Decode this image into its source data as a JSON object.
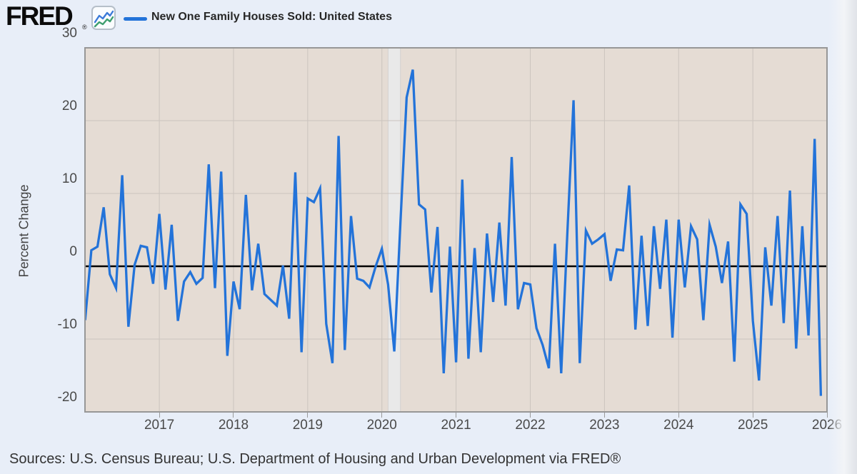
{
  "header": {
    "logo_text": "FRED",
    "registered_mark": "®",
    "legend": {
      "series_label": "New One Family Houses Sold: United States",
      "swatch_color": "#2373d9"
    }
  },
  "y_axis": {
    "title": "Percent Change",
    "ticks": [
      30,
      20,
      10,
      0,
      -10,
      -20
    ]
  },
  "x_axis": {
    "ticks": [
      2017,
      2018,
      2019,
      2020,
      2021,
      2022,
      2023,
      2024,
      2025,
      2026
    ]
  },
  "footer": {
    "sources": "Sources: U.S. Census Bureau; U.S. Department of Housing and Urban Development via FRED®"
  },
  "colors": {
    "page_background": "#e8eef8",
    "plot_background": "#e5dcd4",
    "gridline": "#cbc4be",
    "plot_border": "#979797",
    "zero_line": "#000000",
    "series_line": "#2373d9",
    "recession_band": "#e9e9e9",
    "recession_band_edge": "#d4d2cf",
    "axis_text": "#4a4a4a"
  },
  "chart_data": {
    "type": "line",
    "title": "New One Family Houses Sold: United States",
    "ylabel": "Percent Change",
    "frequency": "monthly",
    "x_start": "2016-01",
    "x_end": "2025-12",
    "ylim": [
      -20,
      30
    ],
    "xlim_years": [
      2016,
      2026
    ],
    "zero_line": 0,
    "grid": true,
    "legend_position": "top-left",
    "recession_band": {
      "from": "2020-02",
      "to": "2020-04"
    },
    "gridlines": {
      "y_values": [
        20,
        10,
        0,
        -10
      ],
      "x_years": [
        2017,
        2018,
        2019,
        2020,
        2021,
        2022,
        2023,
        2024,
        2025
      ]
    },
    "series": [
      {
        "name": "New One Family Houses Sold: United States",
        "color": "#2373d9",
        "values": [
          -7.4,
          2.2,
          2.7,
          8.1,
          -1.1,
          -3.0,
          12.5,
          -8.3,
          0.2,
          2.8,
          2.6,
          -2.4,
          7.2,
          -3.2,
          5.7,
          -7.5,
          -2.1,
          -0.8,
          -2.4,
          -1.6,
          14.0,
          -3.0,
          13.0,
          -12.3,
          -2.1,
          -5.9,
          9.8,
          -3.3,
          3.1,
          -3.8,
          -4.6,
          -5.4,
          0.1,
          -7.2,
          12.9,
          -11.8,
          9.3,
          8.8,
          10.7,
          -7.9,
          -13.3,
          17.9,
          -11.5,
          6.9,
          -1.7,
          -2.0,
          -2.9,
          0.0,
          2.4,
          -2.5,
          -11.7,
          6.0,
          23.2,
          27.0,
          8.5,
          7.8,
          -3.6,
          5.4,
          -14.7,
          2.7,
          -13.2,
          11.9,
          -12.7,
          2.5,
          -11.8,
          4.5,
          -4.9,
          6.0,
          -5.4,
          15.0,
          -5.9,
          -2.3,
          -2.5,
          -8.5,
          -10.8,
          -14.0,
          3.1,
          -14.7,
          4.5,
          22.8,
          -13.3,
          4.9,
          3.1,
          3.7,
          4.4,
          -2.0,
          2.3,
          2.2,
          11.1,
          -8.7,
          4.2,
          -8.2,
          5.5,
          -3.1,
          6.4,
          -9.8,
          6.4,
          -2.9,
          5.5,
          3.7,
          -7.4,
          5.7,
          2.7,
          -2.3,
          3.4,
          -13.1,
          8.5,
          7.2,
          -7.5,
          -15.7,
          2.6,
          -5.4,
          6.9,
          -7.8,
          10.4,
          -11.3,
          5.5,
          -9.5,
          17.5,
          -17.8
        ]
      }
    ]
  }
}
